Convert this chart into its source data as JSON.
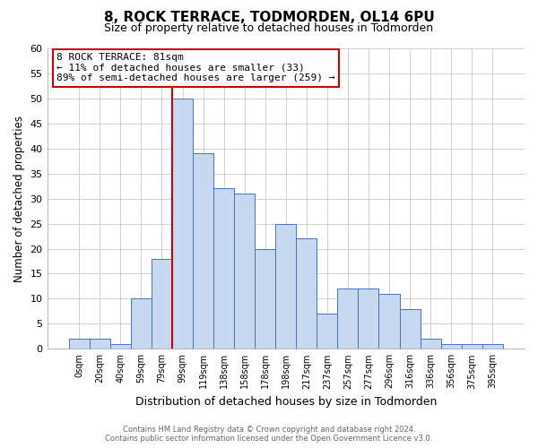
{
  "title": "8, ROCK TERRACE, TODMORDEN, OL14 6PU",
  "subtitle": "Size of property relative to detached houses in Todmorden",
  "xlabel": "Distribution of detached houses by size in Todmorden",
  "ylabel": "Number of detached properties",
  "bin_labels": [
    "0sqm",
    "20sqm",
    "40sqm",
    "59sqm",
    "79sqm",
    "99sqm",
    "119sqm",
    "138sqm",
    "158sqm",
    "178sqm",
    "198sqm",
    "217sqm",
    "237sqm",
    "257sqm",
    "277sqm",
    "296sqm",
    "316sqm",
    "336sqm",
    "356sqm",
    "375sqm",
    "395sqm"
  ],
  "bar_heights": [
    2,
    2,
    1,
    10,
    18,
    50,
    39,
    32,
    31,
    20,
    25,
    22,
    7,
    12,
    12,
    11,
    8,
    2,
    1,
    1,
    1
  ],
  "bar_color": "#c6d9f0",
  "bar_edge_color": "#4472c4",
  "vline_color": "#cc0000",
  "ylim": [
    0,
    60
  ],
  "yticks": [
    0,
    5,
    10,
    15,
    20,
    25,
    30,
    35,
    40,
    45,
    50,
    55,
    60
  ],
  "annotation_title": "8 ROCK TERRACE: 81sqm",
  "annotation_line1": "← 11% of detached houses are smaller (33)",
  "annotation_line2": "89% of semi-detached houses are larger (259) →",
  "footer_line1": "Contains HM Land Registry data © Crown copyright and database right 2024.",
  "footer_line2": "Contains public sector information licensed under the Open Government Licence v3.0.",
  "background_color": "#ffffff",
  "grid_color": "#d0d0d0"
}
